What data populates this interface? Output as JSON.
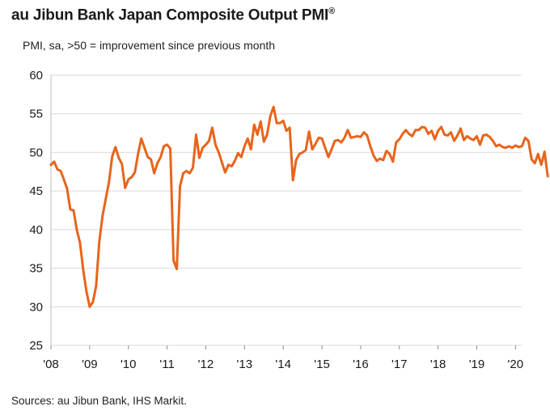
{
  "chart_data": {
    "type": "line",
    "title": "au Jibun Bank Japan Composite Output PMI",
    "title_mark": "®",
    "subtitle": "PMI, sa, >50 = improvement since previous month",
    "source": "Sources: au Jibun Bank, IHS Markit.",
    "ylim": [
      25,
      60
    ],
    "yticks": [
      25,
      30,
      35,
      40,
      45,
      50,
      55,
      60
    ],
    "xlim": [
      2008.0,
      2020.16
    ],
    "xticks": [
      {
        "value": 2008,
        "label": "'08"
      },
      {
        "value": 2009,
        "label": "'09"
      },
      {
        "value": 2010,
        "label": "'10"
      },
      {
        "value": 2011,
        "label": "'11"
      },
      {
        "value": 2012,
        "label": "'12"
      },
      {
        "value": 2013,
        "label": "'13"
      },
      {
        "value": 2014,
        "label": "'14"
      },
      {
        "value": 2015,
        "label": "'15"
      },
      {
        "value": 2016,
        "label": "'16"
      },
      {
        "value": 2017,
        "label": "'17"
      },
      {
        "value": 2018,
        "label": "'18"
      },
      {
        "value": 2019,
        "label": "'19"
      },
      {
        "value": 2020,
        "label": "'20"
      }
    ],
    "grid": true,
    "line_color": "#e8641b",
    "series": [
      {
        "name": "",
        "start_year": 2008,
        "start_month": 1,
        "values": [
          48.4,
          48.8,
          47.8,
          47.6,
          46.5,
          45.3,
          42.6,
          42.5,
          40.0,
          38.3,
          34.8,
          32.0,
          30.0,
          30.6,
          32.7,
          38.5,
          41.8,
          44.0,
          46.2,
          49.5,
          50.7,
          49.3,
          48.5,
          45.4,
          46.5,
          46.8,
          47.4,
          49.8,
          51.8,
          50.6,
          49.4,
          49.1,
          47.3,
          48.6,
          49.4,
          50.8,
          51.0,
          50.5,
          36.0,
          34.9,
          45.6,
          47.3,
          47.6,
          47.3,
          48.0,
          52.3,
          49.3,
          50.6,
          51.0,
          51.5,
          53.2,
          51.0,
          50.0,
          48.7,
          47.4,
          48.4,
          48.2,
          48.9,
          49.9,
          49.4,
          50.8,
          51.8,
          50.4,
          53.6,
          52.3,
          54.0,
          51.4,
          52.3,
          54.7,
          55.9,
          53.8,
          53.8,
          54.1,
          52.8,
          53.2,
          46.4,
          49.0,
          49.8,
          50.0,
          50.3,
          52.7,
          50.4,
          51.1,
          51.9,
          51.8,
          50.6,
          49.4,
          50.4,
          51.5,
          51.6,
          51.3,
          51.9,
          52.9,
          51.9,
          52.0,
          52.1,
          52.0,
          52.6,
          52.2,
          50.8,
          49.6,
          48.9,
          49.2,
          49.0,
          50.2,
          49.8,
          48.8,
          51.3,
          51.7,
          52.4,
          52.9,
          52.4,
          52.1,
          52.9,
          52.9,
          53.3,
          53.2,
          52.4,
          52.8,
          51.7,
          52.8,
          53.3,
          52.3,
          52.2,
          52.6,
          51.5,
          52.2,
          53.1,
          51.6,
          52.1,
          51.8,
          51.6,
          52.1,
          51.0,
          52.2,
          52.3,
          52.0,
          51.5,
          50.8,
          51.0,
          50.7,
          50.6,
          50.8,
          50.6,
          50.9,
          50.7,
          50.8,
          51.9,
          51.5,
          49.1,
          48.6,
          49.8,
          48.4,
          50.1,
          46.9
        ]
      }
    ]
  }
}
